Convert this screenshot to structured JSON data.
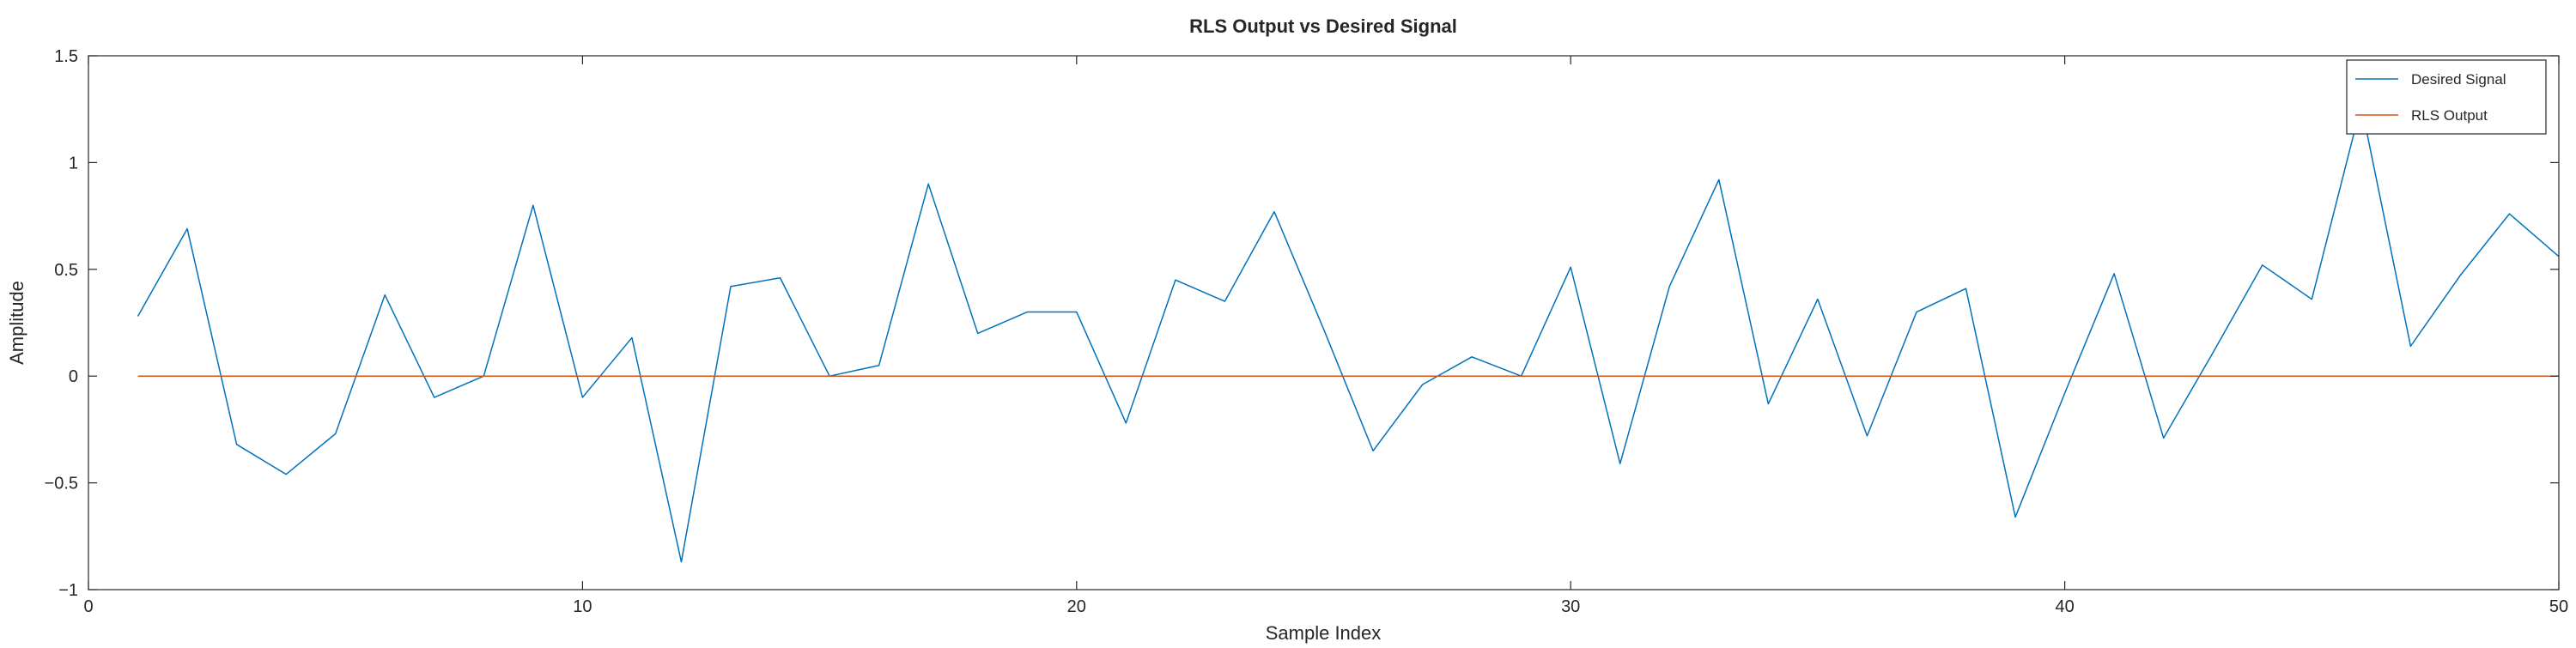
{
  "chart_data": {
    "type": "line",
    "title": "RLS Output vs Desired Signal",
    "xlabel": "Sample Index",
    "ylabel": "Amplitude",
    "xlim": [
      0,
      50
    ],
    "ylim": [
      -1,
      1.5
    ],
    "xticks": [
      0,
      10,
      20,
      30,
      40,
      50
    ],
    "yticks": [
      -1,
      -0.5,
      0,
      0.5,
      1,
      1.5
    ],
    "xtick_labels": [
      "0",
      "10",
      "20",
      "30",
      "40",
      "50"
    ],
    "ytick_labels": [
      "−1",
      "−0.5",
      "0",
      "0.5",
      "1",
      "1.5"
    ],
    "grid": false,
    "legend_position": "top-right",
    "x": [
      1,
      2,
      3,
      4,
      5,
      6,
      7,
      8,
      9,
      10,
      11,
      12,
      13,
      14,
      15,
      16,
      17,
      18,
      19,
      20,
      21,
      22,
      23,
      24,
      25,
      26,
      27,
      28,
      29,
      30,
      31,
      32,
      33,
      34,
      35,
      36,
      37,
      38,
      39,
      40,
      41,
      42,
      43,
      44,
      45,
      46,
      47,
      48,
      49,
      50
    ],
    "series": [
      {
        "name": "Desired Signal",
        "color": "#0072bd",
        "values": [
          0.28,
          0.69,
          -0.32,
          -0.46,
          -0.27,
          0.38,
          -0.1,
          0.0,
          0.8,
          -0.1,
          0.18,
          -0.87,
          0.42,
          0.46,
          0.0,
          0.05,
          0.9,
          0.2,
          0.3,
          0.3,
          -0.22,
          0.45,
          0.35,
          0.77,
          0.22,
          -0.35,
          -0.04,
          0.09,
          0.0,
          0.51,
          -0.41,
          0.42,
          0.92,
          -0.13,
          0.36,
          -0.28,
          0.3,
          0.41,
          -0.66,
          -0.08,
          0.48,
          -0.29,
          0.11,
          0.52,
          0.36,
          1.27,
          0.14,
          0.47,
          0.76,
          0.56
        ]
      },
      {
        "name": "RLS Output",
        "color": "#d95319",
        "values": [
          0,
          0,
          0,
          0,
          0,
          0,
          0,
          0,
          0,
          0,
          0,
          0,
          0,
          0,
          0,
          0,
          0,
          0,
          0,
          0,
          0,
          0,
          0,
          0,
          0,
          0,
          0,
          0,
          0,
          0,
          0,
          0,
          0,
          0,
          0,
          0,
          0,
          0,
          0,
          0,
          0,
          0,
          0,
          0,
          0,
          0,
          0,
          0,
          0,
          0
        ]
      }
    ]
  }
}
